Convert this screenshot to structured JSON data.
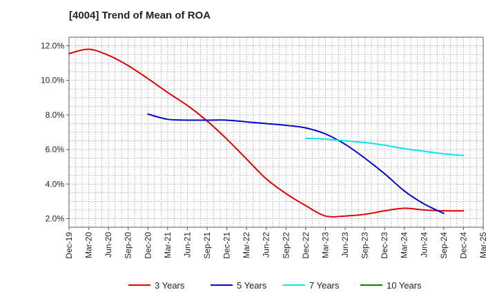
{
  "title": "[4004]  Trend of Mean of ROA",
  "chart_data": {
    "type": "line",
    "title": "[4004]  Trend of Mean of ROA",
    "xlabel": "",
    "ylabel": "",
    "x_ticks": [
      "Dec-19",
      "Mar-20",
      "Jun-20",
      "Sep-20",
      "Dec-20",
      "Mar-21",
      "Jun-21",
      "Sep-21",
      "Dec-21",
      "Mar-22",
      "Jun-22",
      "Sep-22",
      "Dec-22",
      "Mar-23",
      "Jun-23",
      "Sep-23",
      "Dec-23",
      "Mar-24",
      "Jun-24",
      "Sep-24",
      "Dec-24",
      "Mar-25"
    ],
    "y_ticks": [
      "2.0%",
      "4.0%",
      "6.0%",
      "8.0%",
      "10.0%",
      "12.0%"
    ],
    "y_tick_values": [
      2,
      4,
      6,
      8,
      10,
      12
    ],
    "ylim": [
      1.5,
      12.5
    ],
    "grid": true,
    "legend_position": "bottom",
    "series": [
      {
        "name": "3 Years",
        "color": "#dd0000",
        "start_index": 0,
        "values": [
          11.55,
          11.8,
          11.45,
          10.85,
          10.1,
          9.3,
          8.55,
          7.65,
          6.6,
          5.45,
          4.3,
          3.45,
          2.75,
          2.15,
          2.15,
          2.25,
          2.45,
          2.6,
          2.5,
          2.45,
          2.45
        ]
      },
      {
        "name": "5 Years",
        "color": "#0000cc",
        "start_index": 4,
        "values": [
          8.05,
          7.75,
          7.7,
          7.7,
          7.7,
          7.6,
          7.5,
          7.4,
          7.25,
          6.9,
          6.3,
          5.5,
          4.6,
          3.6,
          2.85,
          2.3
        ]
      },
      {
        "name": "7 Years",
        "color": "#00e5ee",
        "start_index": 12,
        "values": [
          6.65,
          6.6,
          6.5,
          6.4,
          6.25,
          6.05,
          5.9,
          5.75,
          5.65
        ]
      },
      {
        "name": "10 Years",
        "color": "#008000",
        "start_index": 0,
        "values": []
      }
    ]
  }
}
